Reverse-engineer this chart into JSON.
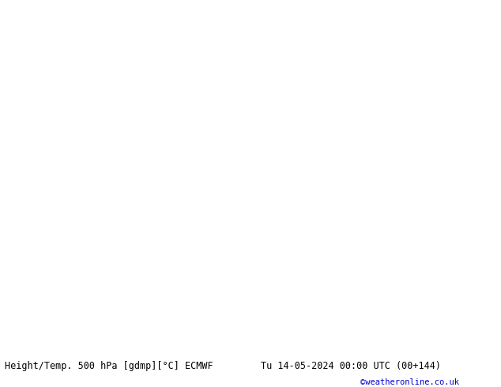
{
  "title_left": "Height/Temp. 500 hPa [gdmp][°C] ECMWF",
  "title_right": "Tu 14-05-2024 00:00 UTC (00+144)",
  "credit": "©weatheronline.co.uk",
  "bg_color": "#d8d8d8",
  "land_color": "#b5d98a",
  "sea_color": "#d8d8d8",
  "fig_w": 6.34,
  "fig_h": 4.9,
  "dpi": 100
}
